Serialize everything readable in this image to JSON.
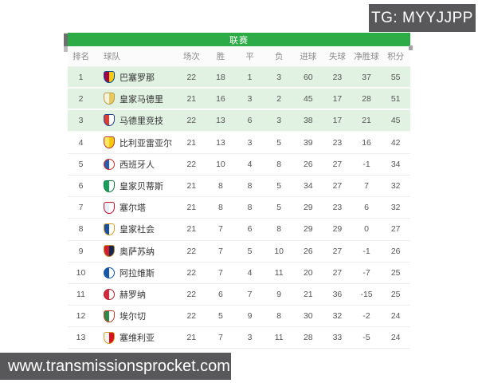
{
  "watermarks": {
    "tg_label": "TG: MYYJJPP",
    "site_label": "www.transmissionsprocket.com"
  },
  "colors": {
    "accent_green": "#2cab47",
    "highlight_row_bg": "#e1f1e2",
    "watermark_bg": "#58585a"
  },
  "table": {
    "title": "联赛",
    "columns": [
      "排名",
      "球队",
      "场次",
      "胜",
      "平",
      "负",
      "进球",
      "失球",
      "净胜球",
      "积分"
    ],
    "rows": [
      {
        "rank": "1",
        "team": "巴塞罗那",
        "played": "22",
        "win": "18",
        "draw": "1",
        "loss": "3",
        "gf": "60",
        "ga": "23",
        "gd": "37",
        "pts": "55",
        "highlight": true,
        "crest": {
          "shape": "shield",
          "c1": "#a50044",
          "c2": "#ffcb05",
          "border": "#004d98"
        }
      },
      {
        "rank": "2",
        "team": "皇家马德里",
        "played": "21",
        "win": "16",
        "draw": "3",
        "loss": "2",
        "gf": "45",
        "ga": "17",
        "gd": "28",
        "pts": "51",
        "highlight": true,
        "crest": {
          "shape": "shield",
          "c1": "#f7f3e3",
          "c2": "#e7c95c",
          "border": "#b99a45"
        }
      },
      {
        "rank": "3",
        "team": "马德里竞技",
        "played": "22",
        "win": "13",
        "draw": "6",
        "loss": "3",
        "gf": "38",
        "ga": "17",
        "gd": "21",
        "pts": "45",
        "highlight": true,
        "crest": {
          "shape": "shield",
          "c1": "#e03c31",
          "c2": "#ffffff",
          "border": "#27408b"
        }
      },
      {
        "rank": "4",
        "team": "比利亚雷亚尔",
        "played": "21",
        "win": "13",
        "draw": "3",
        "loss": "5",
        "gf": "39",
        "ga": "23",
        "gd": "16",
        "pts": "42",
        "highlight": false,
        "crest": {
          "shape": "shield",
          "c1": "#ffe667",
          "c2": "#f6c900",
          "border": "#b03a2e"
        }
      },
      {
        "rank": "5",
        "team": "西班牙人",
        "played": "22",
        "win": "10",
        "draw": "4",
        "loss": "8",
        "gf": "26",
        "ga": "27",
        "gd": "-1",
        "pts": "34",
        "highlight": false,
        "crest": {
          "shape": "circle",
          "c1": "#2b5cab",
          "c2": "#ffffff",
          "border": "#d42a2a"
        }
      },
      {
        "rank": "6",
        "team": "皇家贝蒂斯",
        "played": "21",
        "win": "8",
        "draw": "8",
        "loss": "5",
        "gf": "34",
        "ga": "27",
        "gd": "7",
        "pts": "32",
        "highlight": false,
        "crest": {
          "shape": "shield",
          "c1": "#18a05a",
          "c2": "#ffffff",
          "border": "#0e7a42"
        }
      },
      {
        "rank": "7",
        "team": "塞尔塔",
        "played": "21",
        "win": "8",
        "draw": "8",
        "loss": "5",
        "gf": "29",
        "ga": "23",
        "gd": "6",
        "pts": "32",
        "highlight": false,
        "crest": {
          "shape": "shield",
          "c1": "#e8eef5",
          "c2": "#ffffff",
          "border": "#c4122e"
        }
      },
      {
        "rank": "8",
        "team": "皇家社会",
        "played": "21",
        "win": "7",
        "draw": "6",
        "loss": "8",
        "gf": "29",
        "ga": "29",
        "gd": "0",
        "pts": "27",
        "highlight": false,
        "crest": {
          "shape": "shield",
          "c1": "#1c4fa0",
          "c2": "#ffffff",
          "border": "#c9a227"
        }
      },
      {
        "rank": "9",
        "team": "奥萨苏纳",
        "played": "22",
        "win": "7",
        "draw": "5",
        "loss": "10",
        "gf": "26",
        "ga": "27",
        "gd": "-1",
        "pts": "26",
        "highlight": false,
        "crest": {
          "shape": "shield",
          "c1": "#d41e2f",
          "c2": "#12264f",
          "border": "#b5912f"
        }
      },
      {
        "rank": "10",
        "team": "阿拉维斯",
        "played": "22",
        "win": "7",
        "draw": "4",
        "loss": "11",
        "gf": "20",
        "ga": "27",
        "gd": "-7",
        "pts": "25",
        "highlight": false,
        "crest": {
          "shape": "circle",
          "c1": "#1857a5",
          "c2": "#ffffff",
          "border": "#1857a5"
        }
      },
      {
        "rank": "11",
        "team": "赫罗纳",
        "played": "22",
        "win": "6",
        "draw": "7",
        "loss": "9",
        "gf": "21",
        "ga": "36",
        "gd": "-15",
        "pts": "25",
        "highlight": false,
        "crest": {
          "shape": "circle",
          "c1": "#d42a3c",
          "c2": "#ffffff",
          "border": "#b01f30"
        }
      },
      {
        "rank": "12",
        "team": "埃尔切",
        "played": "22",
        "win": "5",
        "draw": "9",
        "loss": "8",
        "gf": "30",
        "ga": "32",
        "gd": "-2",
        "pts": "24",
        "highlight": false,
        "crest": {
          "shape": "shield",
          "c1": "#2e8b4a",
          "c2": "#ffffff",
          "border": "#c43b2e"
        }
      },
      {
        "rank": "13",
        "team": "塞维利亚",
        "played": "21",
        "win": "7",
        "draw": "3",
        "loss": "11",
        "gf": "28",
        "ga": "33",
        "gd": "-5",
        "pts": "24",
        "highlight": false,
        "crest": {
          "shape": "shield",
          "c1": "#f5f5f5",
          "c2": "#d8101f",
          "border": "#c9a227"
        }
      }
    ]
  }
}
